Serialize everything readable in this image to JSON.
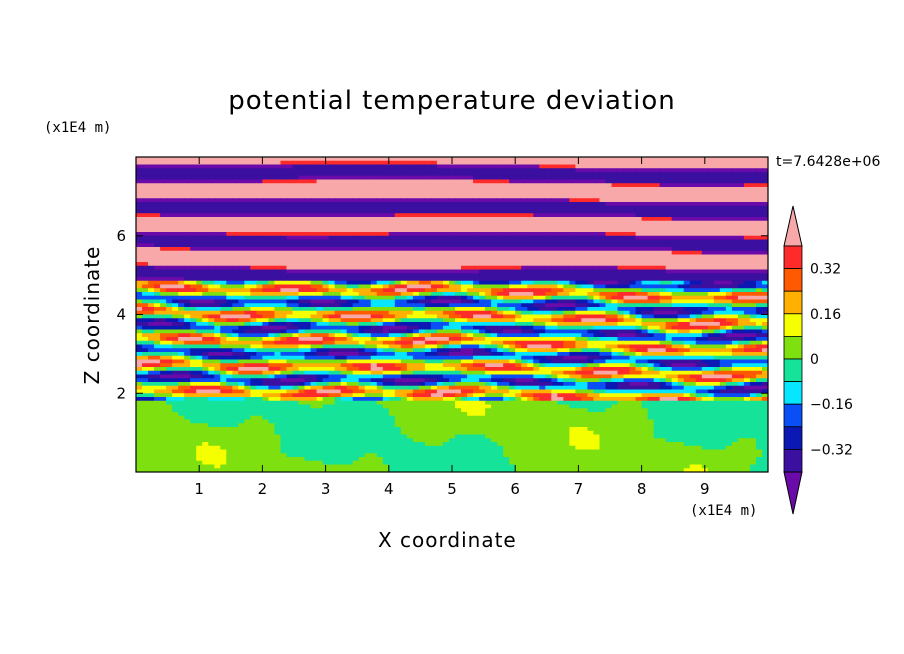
{
  "chart_data": {
    "type": "heatmap",
    "title": "potential temperature deviation",
    "xlabel": "X coordinate",
    "ylabel": "Z coordinate",
    "x_unit": "(x1E4 m)",
    "y_unit": "(x1E4 m)",
    "time_label": "t=7.6428e+06",
    "xlim": [
      0,
      10
    ],
    "ylim": [
      0,
      8
    ],
    "x_ticks": [
      "1",
      "2",
      "3",
      "4",
      "5",
      "6",
      "7",
      "8",
      "9"
    ],
    "y_ticks": [
      "2",
      "4",
      "6"
    ],
    "colorbar": {
      "levels": [
        -0.4,
        -0.32,
        -0.24,
        -0.16,
        -0.08,
        0,
        0.08,
        0.16,
        0.24,
        0.32,
        0.4
      ],
      "tick_labels": [
        "0.32",
        "0.16",
        "0",
        "−0.16",
        "−0.32"
      ],
      "colors": [
        "#6a0aa8",
        "#3b0fa0",
        "#0c18b4",
        "#0a4ef5",
        "#06e6ff",
        "#16e39a",
        "#7ee00f",
        "#f6ff00",
        "#ffb000",
        "#ff5a00",
        "#ff2b2b",
        "#f8a8a8"
      ],
      "extend": "both"
    }
  }
}
